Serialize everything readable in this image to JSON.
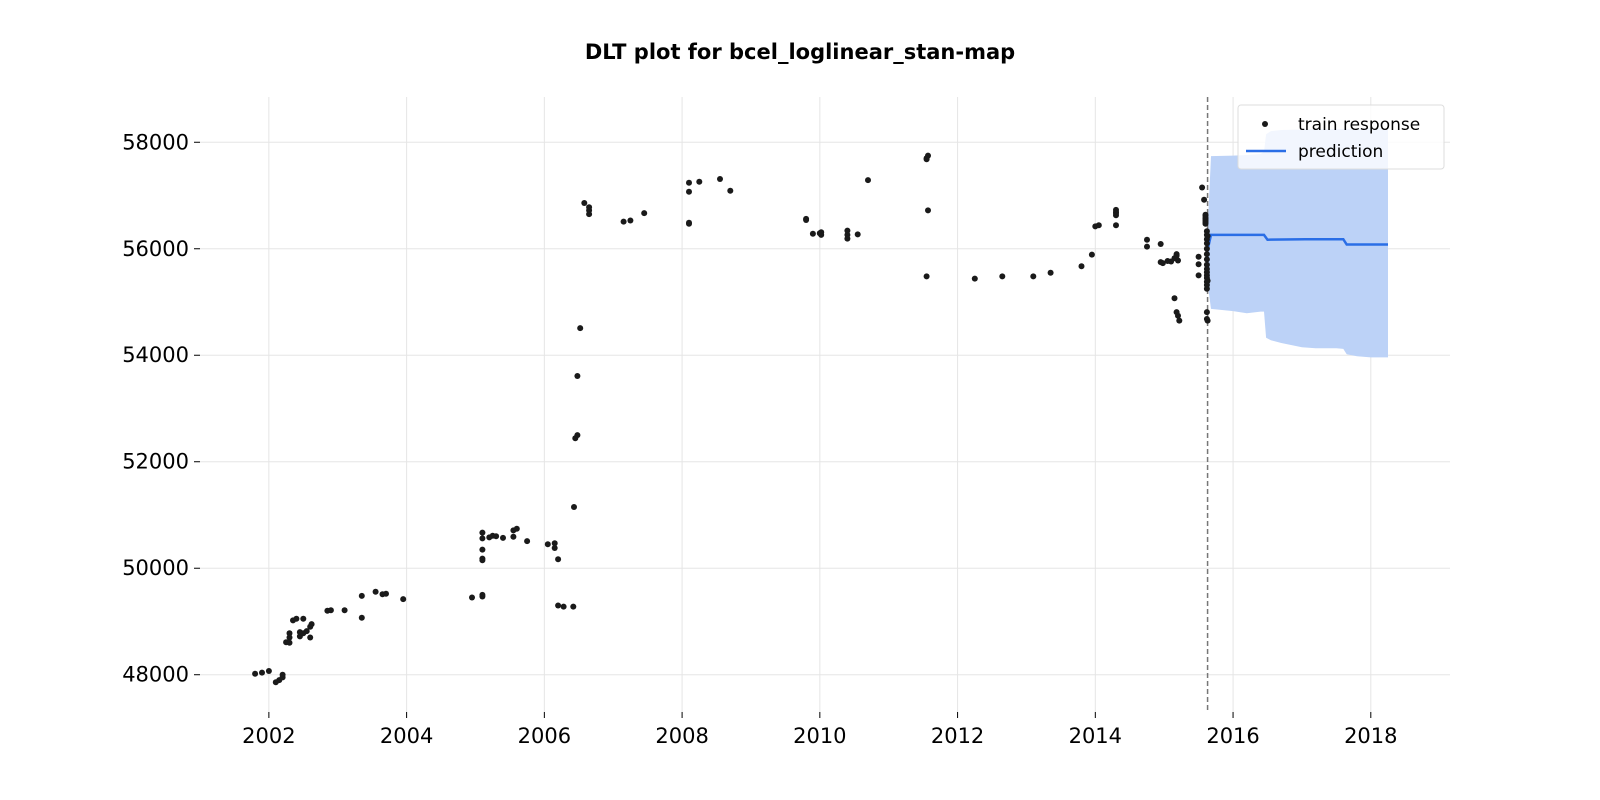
{
  "chart_data": {
    "type": "scatter",
    "title": "DLT plot for bcel_loglinear_stan-map",
    "xlabel": "",
    "ylabel": "",
    "xlim": [
      2001.0,
      2019.15
    ],
    "ylim": [
      47300,
      58850
    ],
    "x_ticks": [
      2002,
      2004,
      2006,
      2008,
      2010,
      2012,
      2014,
      2016,
      2018
    ],
    "y_ticks": [
      48000,
      50000,
      52000,
      54000,
      56000,
      58000
    ],
    "grid": true,
    "legend_position": "top-right",
    "legend": [
      "train response",
      "prediction"
    ],
    "colors": {
      "points": "#1a1a1a",
      "prediction": "#2a6ee6",
      "band": "#bcd2f7",
      "split_line": "#777777",
      "grid": "#e5e5e5"
    },
    "train_end": 2015.63,
    "series": [
      {
        "name": "train response",
        "type": "scatter",
        "points": [
          [
            2001.8,
            48020
          ],
          [
            2001.9,
            48040
          ],
          [
            2002.0,
            48070
          ],
          [
            2002.1,
            47860
          ],
          [
            2002.15,
            47900
          ],
          [
            2002.2,
            47950
          ],
          [
            2002.2,
            48000
          ],
          [
            2002.25,
            48610
          ],
          [
            2002.3,
            48600
          ],
          [
            2002.3,
            48700
          ],
          [
            2002.3,
            48780
          ],
          [
            2002.35,
            49020
          ],
          [
            2002.4,
            49050
          ],
          [
            2002.45,
            48800
          ],
          [
            2002.45,
            48720
          ],
          [
            2002.5,
            48780
          ],
          [
            2002.5,
            49050
          ],
          [
            2002.55,
            48820
          ],
          [
            2002.6,
            48700
          ],
          [
            2002.6,
            48900
          ],
          [
            2002.62,
            48950
          ],
          [
            2002.85,
            49200
          ],
          [
            2002.9,
            49210
          ],
          [
            2003.1,
            49210
          ],
          [
            2003.35,
            49070
          ],
          [
            2003.35,
            49480
          ],
          [
            2003.55,
            49560
          ],
          [
            2003.65,
            49510
          ],
          [
            2003.7,
            49520
          ],
          [
            2003.95,
            49420
          ],
          [
            2004.95,
            49450
          ],
          [
            2005.1,
            49470
          ],
          [
            2005.1,
            49500
          ],
          [
            2005.1,
            50180
          ],
          [
            2005.1,
            50150
          ],
          [
            2005.1,
            50350
          ],
          [
            2005.1,
            50560
          ],
          [
            2005.1,
            50670
          ],
          [
            2005.2,
            50580
          ],
          [
            2005.25,
            50610
          ],
          [
            2005.3,
            50600
          ],
          [
            2005.4,
            50570
          ],
          [
            2005.55,
            50590
          ],
          [
            2005.55,
            50710
          ],
          [
            2005.6,
            50740
          ],
          [
            2005.75,
            50510
          ],
          [
            2006.05,
            50450
          ],
          [
            2006.15,
            50470
          ],
          [
            2006.15,
            50380
          ],
          [
            2006.2,
            50170
          ],
          [
            2006.2,
            49300
          ],
          [
            2006.28,
            49280
          ],
          [
            2006.42,
            49280
          ],
          [
            2006.43,
            51150
          ],
          [
            2006.45,
            52440
          ],
          [
            2006.48,
            52500
          ],
          [
            2006.48,
            53610
          ],
          [
            2006.52,
            54510
          ],
          [
            2006.58,
            56860
          ],
          [
            2006.65,
            56780
          ],
          [
            2006.65,
            56720
          ],
          [
            2006.65,
            56650
          ],
          [
            2007.15,
            56510
          ],
          [
            2007.25,
            56530
          ],
          [
            2007.45,
            56670
          ],
          [
            2008.1,
            56490
          ],
          [
            2008.1,
            56470
          ],
          [
            2008.1,
            57070
          ],
          [
            2008.1,
            57240
          ],
          [
            2008.25,
            57260
          ],
          [
            2008.55,
            57310
          ],
          [
            2008.7,
            57090
          ],
          [
            2009.8,
            56560
          ],
          [
            2009.8,
            56540
          ],
          [
            2009.9,
            56280
          ],
          [
            2010.0,
            56290
          ],
          [
            2010.02,
            56260
          ],
          [
            2010.02,
            56310
          ],
          [
            2010.4,
            56340
          ],
          [
            2010.4,
            56260
          ],
          [
            2010.4,
            56190
          ],
          [
            2010.55,
            56270
          ],
          [
            2010.7,
            57290
          ],
          [
            2011.55,
            57700
          ],
          [
            2011.55,
            57680
          ],
          [
            2011.57,
            57750
          ],
          [
            2011.57,
            56720
          ],
          [
            2011.55,
            55480
          ],
          [
            2012.25,
            55440
          ],
          [
            2012.65,
            55480
          ],
          [
            2013.1,
            55480
          ],
          [
            2013.35,
            55550
          ],
          [
            2013.8,
            55670
          ],
          [
            2013.95,
            55890
          ],
          [
            2014.0,
            56420
          ],
          [
            2014.05,
            56440
          ],
          [
            2014.3,
            56630
          ],
          [
            2014.3,
            56690
          ],
          [
            2014.3,
            56730
          ],
          [
            2014.3,
            56670
          ],
          [
            2014.3,
            56440
          ],
          [
            2014.75,
            56040
          ],
          [
            2014.75,
            56170
          ],
          [
            2014.95,
            56090
          ],
          [
            2014.95,
            55750
          ],
          [
            2014.98,
            55730
          ],
          [
            2015.05,
            55770
          ],
          [
            2015.1,
            55760
          ],
          [
            2015.15,
            55820
          ],
          [
            2015.18,
            55870
          ],
          [
            2015.18,
            55900
          ],
          [
            2015.2,
            55780
          ],
          [
            2015.15,
            55070
          ],
          [
            2015.18,
            54810
          ],
          [
            2015.2,
            54740
          ],
          [
            2015.22,
            54650
          ],
          [
            2015.5,
            55850
          ],
          [
            2015.5,
            55500
          ],
          [
            2015.5,
            55710
          ],
          [
            2015.55,
            57150
          ],
          [
            2015.58,
            56920
          ],
          [
            2015.6,
            56640
          ],
          [
            2015.6,
            56620
          ],
          [
            2015.6,
            56580
          ],
          [
            2015.6,
            56560
          ],
          [
            2015.6,
            56530
          ],
          [
            2015.6,
            56500
          ],
          [
            2015.6,
            56470
          ],
          [
            2015.62,
            56330
          ],
          [
            2015.62,
            56260
          ],
          [
            2015.62,
            56180
          ],
          [
            2015.62,
            56100
          ],
          [
            2015.62,
            56000
          ],
          [
            2015.62,
            55900
          ],
          [
            2015.62,
            55800
          ],
          [
            2015.62,
            55700
          ],
          [
            2015.62,
            55620
          ],
          [
            2015.62,
            55560
          ],
          [
            2015.62,
            55500
          ],
          [
            2015.62,
            55450
          ],
          [
            2015.62,
            55380
          ],
          [
            2015.62,
            55320
          ],
          [
            2015.62,
            55250
          ],
          [
            2015.62,
            54810
          ],
          [
            2015.62,
            54680
          ],
          [
            2015.63,
            54650
          ],
          [
            2015.63,
            55400
          ],
          [
            2015.63,
            56240
          ]
        ]
      },
      {
        "name": "prediction",
        "type": "line",
        "points": [
          [
            2015.63,
            55980
          ],
          [
            2015.68,
            56260
          ],
          [
            2016.45,
            56260
          ],
          [
            2016.5,
            56170
          ],
          [
            2017.05,
            56180
          ],
          [
            2017.6,
            56180
          ],
          [
            2017.65,
            56080
          ],
          [
            2018.25,
            56080
          ]
        ]
      },
      {
        "name": "prediction interval",
        "type": "area",
        "x": [
          2015.63,
          2015.68,
          2016.0,
          2016.2,
          2016.4,
          2016.45,
          2016.48,
          2016.55,
          2016.7,
          2017.0,
          2017.2,
          2017.5,
          2017.6,
          2017.65,
          2017.8,
          2018.0,
          2018.25
        ],
        "lower": [
          55350,
          54870,
          54830,
          54790,
          54820,
          54820,
          54330,
          54280,
          54230,
          54150,
          54130,
          54130,
          54120,
          54020,
          53980,
          53960,
          53960
        ],
        "upper": [
          56350,
          57740,
          57750,
          57760,
          57780,
          57820,
          58150,
          58210,
          58230,
          58240,
          58250,
          58250,
          58250,
          58250,
          58260,
          58260,
          58260
        ]
      }
    ]
  }
}
